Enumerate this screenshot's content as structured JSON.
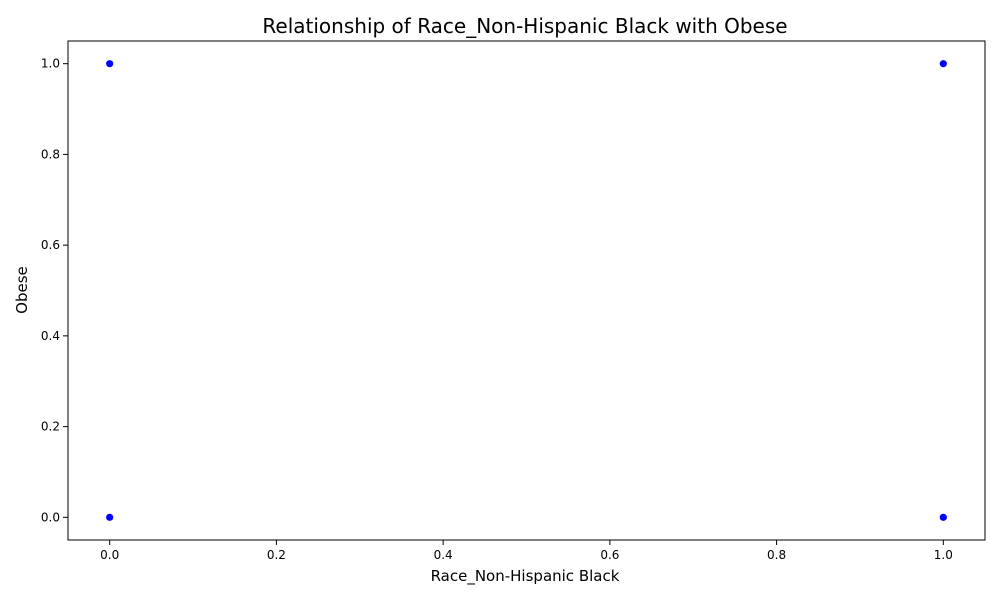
{
  "chart_data": {
    "type": "scatter",
    "title": "Relationship of Race_Non-Hispanic Black with Obese",
    "xlabel": "Race_Non-Hispanic Black",
    "ylabel": "Obese",
    "xlim": [
      -0.05,
      1.05
    ],
    "ylim": [
      -0.05,
      1.05
    ],
    "x_ticks": [
      0.0,
      0.2,
      0.4,
      0.6,
      0.8,
      1.0
    ],
    "x_tick_labels": [
      "0.0",
      "0.2",
      "0.4",
      "0.6",
      "0.8",
      "1.0"
    ],
    "y_ticks": [
      0.0,
      0.2,
      0.4,
      0.6,
      0.8,
      1.0
    ],
    "y_tick_labels": [
      "0.0",
      "0.2",
      "0.4",
      "0.6",
      "0.8",
      "1.0"
    ],
    "grid": false,
    "point_color": "#0000ff",
    "points": [
      {
        "x": 0,
        "y": 1
      },
      {
        "x": 1,
        "y": 1
      },
      {
        "x": 0,
        "y": 0
      },
      {
        "x": 1,
        "y": 0
      }
    ]
  }
}
